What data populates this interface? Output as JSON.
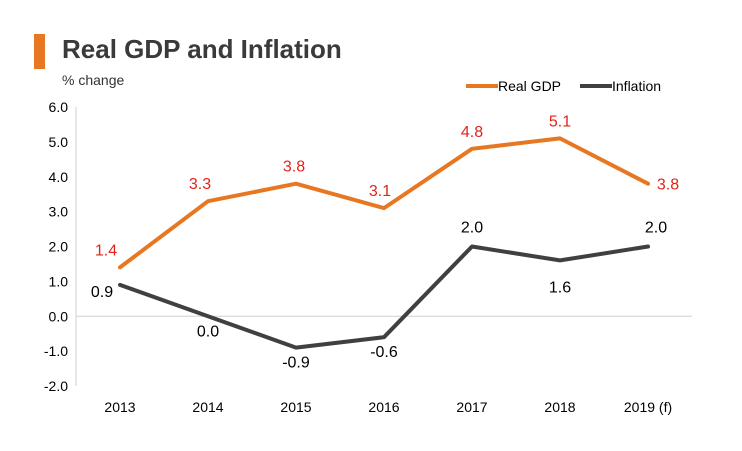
{
  "colors": {
    "accent": "#e87722",
    "gdp_line": "#e87722",
    "gdp_label": "#e2231a",
    "inflation_line": "#404040",
    "inflation_label": "#000000",
    "axis": "#d0d0d0"
  },
  "chart_data": {
    "type": "line",
    "title": "Real GDP and Inflation",
    "ylabel": "% change",
    "xlabel": "",
    "categories": [
      "2013",
      "2014",
      "2015",
      "2016",
      "2017",
      "2018",
      "2019 (f)"
    ],
    "ylim": [
      -2.0,
      6.0
    ],
    "yticks": [
      "6.0",
      "5.0",
      "4.0",
      "3.0",
      "2.0",
      "1.0",
      "0.0",
      "-1.0",
      "-2.0"
    ],
    "legend_position": "top-right",
    "grid": false,
    "series": [
      {
        "name": "Real GDP",
        "values": [
          1.4,
          3.3,
          3.8,
          3.1,
          4.8,
          5.1,
          3.8
        ],
        "labels": [
          "1.4",
          "3.3",
          "3.8",
          "3.1",
          "4.8",
          "5.1",
          "3.8"
        ]
      },
      {
        "name": "Inflation",
        "values": [
          0.9,
          0.0,
          -0.9,
          -0.6,
          2.0,
          1.6,
          2.0
        ],
        "labels": [
          "0.9",
          "0.0",
          "-0.9",
          "-0.6",
          "2.0",
          "1.6",
          "2.0"
        ]
      }
    ]
  }
}
